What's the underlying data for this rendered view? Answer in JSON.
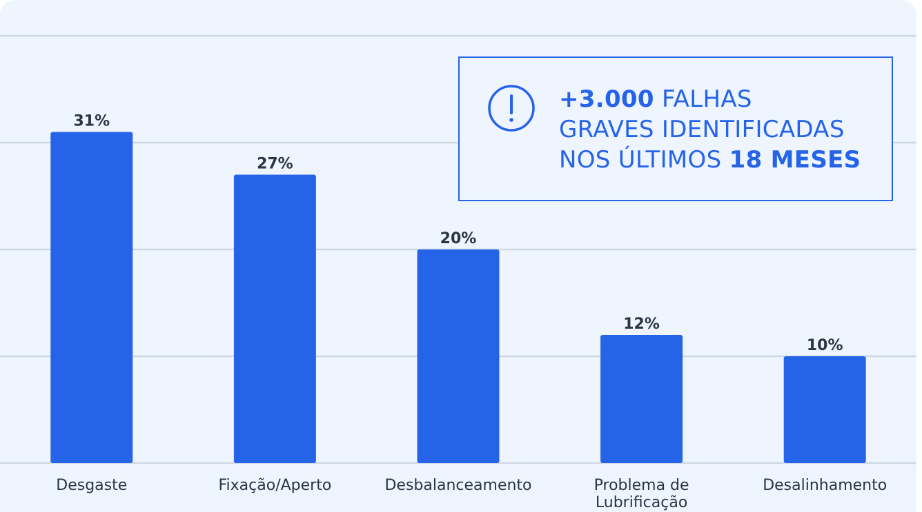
{
  "chart_data": {
    "type": "bar",
    "categories": [
      "Desgaste",
      "Fixação/Aperto",
      "Desbalanceamento",
      "Problema de Lubrificação",
      "Desalinhamento"
    ],
    "category_lines": [
      [
        "Desgaste"
      ],
      [
        "Fixação/Aperto"
      ],
      [
        "Desbalanceamento"
      ],
      [
        "Problema de",
        "Lubrificação"
      ],
      [
        "Desalinhamento"
      ]
    ],
    "values": [
      31,
      27,
      20,
      12,
      10
    ],
    "data_labels": [
      "31%",
      "27%",
      "20%",
      "12%",
      "10%"
    ],
    "ylim": [
      0,
      40
    ],
    "grid": true,
    "xlabel": "",
    "ylabel": "",
    "colors": {
      "bar": "#2563e8",
      "grid": "#d0d7e0",
      "label": "#2b3442",
      "background": "#eef5fe"
    }
  },
  "callout": {
    "icon": "alert-circle-icon",
    "accent": "#2563e8",
    "line1_bold": "+3.000",
    "line1_rest": " FALHAS",
    "line2": "GRAVES IDENTIFICADAS",
    "line3_rest": "NOS ÚLTIMOS ",
    "line3_bold": "18 MESES"
  }
}
